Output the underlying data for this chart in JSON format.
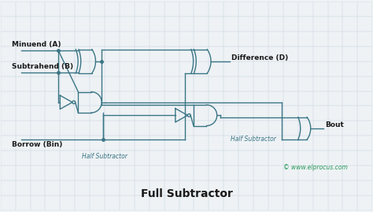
{
  "bg_color": "#eef2f5",
  "grid_color": "#c5d5e0",
  "wire_color": "#3a7585",
  "gate_color": "#3a7585",
  "text_color": "#1a1a1a",
  "copyright_color": "#2a9a5a",
  "title": "Full Subtractor",
  "title_fontsize": 10,
  "copyright": "© www.elprocus.com",
  "labels": {
    "minuend": "Minuend (A)",
    "subtrahend": "Subtrahend (B)",
    "borrow": "Borrow (Bin)",
    "difference": "Difference (D)",
    "bout": "Bout",
    "hs1": "Half Subtractor",
    "hs2": "Half Subtractor"
  }
}
